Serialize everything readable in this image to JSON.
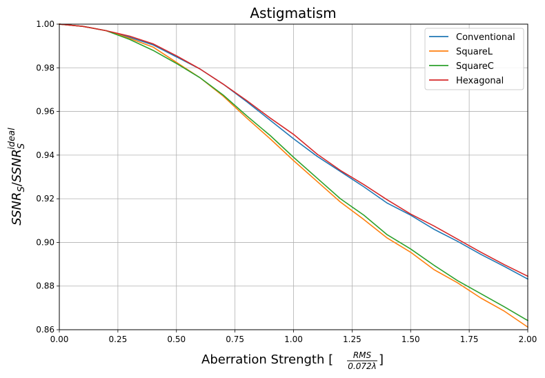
{
  "chart_data": {
    "type": "line",
    "title": "Astigmatism",
    "xlabel": {
      "text": "Aberration Strength [",
      "frac_numerator": "RMS",
      "frac_denominator": "0.072λ",
      "close": "]"
    },
    "ylabel": {
      "base1": "SSNR",
      "sub1": "S",
      "slash": "/",
      "base2": "SSNR",
      "sub2": "S",
      "sup2": "ideal"
    },
    "xlim": [
      0,
      2.0
    ],
    "ylim": [
      0.86,
      1.0
    ],
    "xticks": [
      0.0,
      0.25,
      0.5,
      0.75,
      1.0,
      1.25,
      1.5,
      1.75,
      2.0
    ],
    "xtick_labels": [
      "0.00",
      "0.25",
      "0.50",
      "0.75",
      "1.00",
      "1.25",
      "1.50",
      "1.75",
      "2.00"
    ],
    "yticks": [
      0.86,
      0.88,
      0.9,
      0.92,
      0.94,
      0.96,
      0.98,
      1.0
    ],
    "ytick_labels": [
      "0.86",
      "0.88",
      "0.90",
      "0.92",
      "0.94",
      "0.96",
      "0.98",
      "1.00"
    ],
    "grid": true,
    "legend_position": "top-right",
    "x": [
      0.0,
      0.1,
      0.2,
      0.3,
      0.4,
      0.5,
      0.6,
      0.7,
      0.8,
      0.9,
      1.0,
      1.1,
      1.2,
      1.3,
      1.4,
      1.5,
      1.6,
      1.7,
      1.8,
      1.9,
      2.0
    ],
    "series": [
      {
        "name": "Conventional",
        "color": "#1f77b4",
        "values": [
          1.0,
          0.999,
          0.997,
          0.994,
          0.9905,
          0.985,
          0.9795,
          0.9725,
          0.9645,
          0.956,
          0.9475,
          0.9395,
          0.9325,
          0.9255,
          0.918,
          0.9125,
          0.906,
          0.9005,
          0.8945,
          0.889,
          0.8832
        ]
      },
      {
        "name": "SquareL",
        "color": "#ff7f0e",
        "values": [
          1.0,
          0.999,
          0.997,
          0.9935,
          0.9895,
          0.9825,
          0.9755,
          0.967,
          0.957,
          0.9475,
          0.9375,
          0.928,
          0.9185,
          0.9105,
          0.902,
          0.8955,
          0.8875,
          0.8815,
          0.8745,
          0.8685,
          0.8612
        ]
      },
      {
        "name": "SquareC",
        "color": "#2ca02c",
        "values": [
          1.0,
          0.999,
          0.997,
          0.993,
          0.988,
          0.982,
          0.9755,
          0.9675,
          0.958,
          0.949,
          0.939,
          0.9295,
          0.92,
          0.9125,
          0.9035,
          0.897,
          0.8895,
          0.8825,
          0.8765,
          0.8705,
          0.8642
        ]
      },
      {
        "name": "Hexagonal",
        "color": "#d62728",
        "values": [
          1.0,
          0.999,
          0.997,
          0.9945,
          0.991,
          0.9855,
          0.9795,
          0.9725,
          0.965,
          0.957,
          0.9495,
          0.9405,
          0.933,
          0.9265,
          0.9195,
          0.913,
          0.9075,
          0.9015,
          0.8955,
          0.8898,
          0.8845
        ]
      }
    ]
  }
}
